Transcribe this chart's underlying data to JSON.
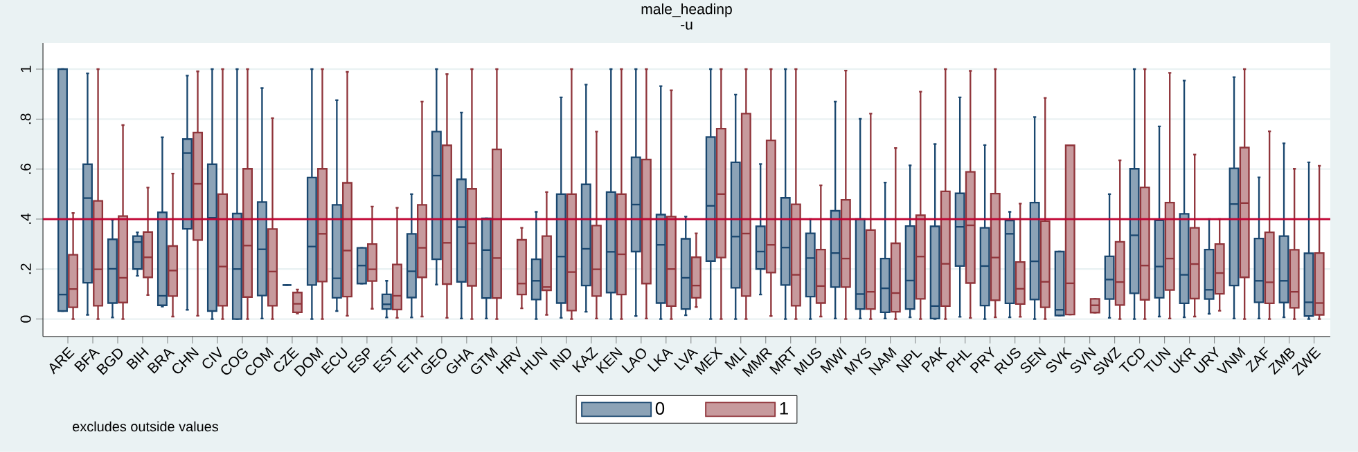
{
  "chart_data": {
    "type": "box",
    "title": "male_headinp",
    "subtitle": "-u",
    "categories": [
      "ARE",
      "BFA",
      "BGD",
      "BIH",
      "BRA",
      "CHN",
      "CIV",
      "COG",
      "COM",
      "CZE",
      "DOM",
      "ECU",
      "ESP",
      "EST",
      "ETH",
      "GEO",
      "GHA",
      "GTM",
      "HRV",
      "HUN",
      "IND",
      "KAZ",
      "KEN",
      "LAO",
      "LKA",
      "LVA",
      "MEX",
      "MLI",
      "MMR",
      "MRT",
      "MUS",
      "MWI",
      "MYS",
      "NAM",
      "NPL",
      "PAK",
      "PHL",
      "PRY",
      "RUS",
      "SEN",
      "SVK",
      "SVN",
      "SWZ",
      "TCD",
      "TUN",
      "UKR",
      "URY",
      "VNM",
      "ZAF",
      "ZMB",
      "ZWE"
    ],
    "series": [
      {
        "name": "0",
        "color": "#1a476f",
        "boxes": [
          {
            "low": 0.032,
            "q1": 0.032,
            "median": 0.098,
            "q3": 1.0,
            "high": 1.0
          },
          {
            "low": 0.017,
            "q1": 0.145,
            "median": 0.484,
            "q3": 0.619,
            "high": 0.983
          },
          {
            "low": 0.006,
            "q1": 0.064,
            "median": 0.201,
            "q3": 0.319,
            "high": 0.397
          },
          {
            "low": 0.173,
            "q1": 0.2,
            "median": 0.308,
            "q3": 0.332,
            "high": 0.347
          },
          {
            "low": 0.05,
            "q1": 0.055,
            "median": 0.093,
            "q3": 0.427,
            "high": 0.727
          },
          {
            "low": 0.037,
            "q1": 0.361,
            "median": 0.664,
            "q3": 0.72,
            "high": 0.974
          },
          {
            "low": 0.0,
            "q1": 0.032,
            "median": 0.405,
            "q3": 0.619,
            "high": 1.0
          },
          {
            "low": 0.0,
            "q1": 0.0,
            "median": 0.2,
            "q3": 0.422,
            "high": 1.0
          },
          {
            "low": 0.002,
            "q1": 0.094,
            "median": 0.279,
            "q3": 0.468,
            "high": 0.924
          },
          {
            "low": 0.136,
            "q1": 0.136,
            "median": 0.136,
            "q3": 0.136,
            "high": 0.136
          },
          {
            "low": 0.0,
            "q1": 0.136,
            "median": 0.29,
            "q3": 0.566,
            "high": 1.0
          },
          {
            "low": 0.032,
            "q1": 0.085,
            "median": 0.163,
            "q3": 0.457,
            "high": 0.876
          },
          {
            "low": 0.142,
            "q1": 0.142,
            "median": 0.214,
            "q3": 0.285,
            "high": 0.285
          },
          {
            "low": 0.006,
            "q1": 0.04,
            "median": 0.059,
            "q3": 0.099,
            "high": 0.153
          },
          {
            "low": 0.006,
            "q1": 0.086,
            "median": 0.191,
            "q3": 0.341,
            "high": 0.5
          },
          {
            "low": 0.138,
            "q1": 0.239,
            "median": 0.574,
            "q3": 0.75,
            "high": 1.0
          },
          {
            "low": 0.002,
            "q1": 0.149,
            "median": 0.368,
            "q3": 0.559,
            "high": 0.826
          },
          {
            "low": 0.002,
            "q1": 0.084,
            "median": 0.276,
            "q3": 0.403,
            "high": 0.403
          },
          null,
          {
            "low": 0.0,
            "q1": 0.078,
            "median": 0.153,
            "q3": 0.239,
            "high": 0.429
          },
          {
            "low": 0.005,
            "q1": 0.064,
            "median": 0.25,
            "q3": 0.5,
            "high": 0.887
          },
          {
            "low": 0.029,
            "q1": 0.134,
            "median": 0.281,
            "q3": 0.539,
            "high": 0.938
          },
          {
            "low": 0.0,
            "q1": 0.106,
            "median": 0.269,
            "q3": 0.508,
            "high": 1.0
          },
          {
            "low": 0.012,
            "q1": 0.27,
            "median": 0.458,
            "q3": 0.647,
            "high": 1.0
          },
          {
            "low": 0.0,
            "q1": 0.064,
            "median": 0.297,
            "q3": 0.418,
            "high": 0.932
          },
          {
            "low": 0.015,
            "q1": 0.04,
            "median": 0.165,
            "q3": 0.321,
            "high": 0.41
          },
          {
            "low": 0.0,
            "q1": 0.232,
            "median": 0.453,
            "q3": 0.728,
            "high": 1.0
          },
          {
            "low": 0.0,
            "q1": 0.125,
            "median": 0.33,
            "q3": 0.627,
            "high": 0.898
          },
          {
            "low": 0.098,
            "q1": 0.2,
            "median": 0.27,
            "q3": 0.371,
            "high": 0.62
          },
          {
            "low": 0.0,
            "q1": 0.136,
            "median": 0.286,
            "q3": 0.485,
            "high": 1.0
          },
          {
            "low": 0.0,
            "q1": 0.09,
            "median": 0.244,
            "q3": 0.343,
            "high": 0.4
          },
          {
            "low": 0.002,
            "q1": 0.128,
            "median": 0.264,
            "q3": 0.433,
            "high": 0.87
          },
          {
            "low": 0.002,
            "q1": 0.04,
            "median": 0.1,
            "q3": 0.4,
            "high": 0.801
          },
          {
            "low": 0.002,
            "q1": 0.027,
            "median": 0.123,
            "q3": 0.242,
            "high": 0.546
          },
          {
            "low": 0.007,
            "q1": 0.04,
            "median": 0.154,
            "q3": 0.372,
            "high": 0.615
          },
          {
            "low": 0.0,
            "q1": 0.002,
            "median": 0.052,
            "q3": 0.371,
            "high": 0.7
          },
          {
            "low": 0.009,
            "q1": 0.212,
            "median": 0.369,
            "q3": 0.503,
            "high": 0.887
          },
          {
            "low": 0.0,
            "q1": 0.054,
            "median": 0.212,
            "q3": 0.365,
            "high": 0.696
          },
          {
            "low": 0.007,
            "q1": 0.063,
            "median": 0.341,
            "q3": 0.394,
            "high": 0.429
          },
          {
            "low": 0.0,
            "q1": 0.078,
            "median": 0.231,
            "q3": 0.466,
            "high": 0.808
          },
          {
            "low": 0.014,
            "q1": 0.014,
            "median": 0.037,
            "q3": 0.27,
            "high": 0.27
          },
          null,
          {
            "low": 0.005,
            "q1": 0.08,
            "median": 0.158,
            "q3": 0.251,
            "high": 0.5
          },
          {
            "low": 0.0,
            "q1": 0.103,
            "median": 0.335,
            "q3": 0.601,
            "high": 1.0
          },
          {
            "low": 0.01,
            "q1": 0.085,
            "median": 0.21,
            "q3": 0.395,
            "high": 0.771
          },
          {
            "low": 0.007,
            "q1": 0.063,
            "median": 0.177,
            "q3": 0.421,
            "high": 0.954
          },
          {
            "low": 0.021,
            "q1": 0.08,
            "median": 0.117,
            "q3": 0.278,
            "high": 0.4
          },
          {
            "low": 0.002,
            "q1": 0.134,
            "median": 0.46,
            "q3": 0.603,
            "high": 0.968
          },
          {
            "low": 0.002,
            "q1": 0.067,
            "median": 0.153,
            "q3": 0.322,
            "high": 0.567
          },
          {
            "low": 0.007,
            "q1": 0.066,
            "median": 0.153,
            "q3": 0.332,
            "high": 0.703
          },
          {
            "low": 0.0,
            "q1": 0.012,
            "median": 0.067,
            "q3": 0.263,
            "high": 0.627
          }
        ]
      },
      {
        "name": "1",
        "color": "#90353b",
        "boxes": [
          {
            "low": 0.0,
            "q1": 0.047,
            "median": 0.12,
            "q3": 0.257,
            "high": 0.424
          },
          {
            "low": 0.0,
            "q1": 0.053,
            "median": 0.199,
            "q3": 0.473,
            "high": 1.0
          },
          {
            "low": 0.0,
            "q1": 0.066,
            "median": 0.165,
            "q3": 0.412,
            "high": 0.776
          },
          {
            "low": 0.096,
            "q1": 0.167,
            "median": 0.247,
            "q3": 0.348,
            "high": 0.526
          },
          {
            "low": 0.01,
            "q1": 0.092,
            "median": 0.194,
            "q3": 0.292,
            "high": 0.582
          },
          {
            "low": 0.013,
            "q1": 0.316,
            "median": 0.541,
            "q3": 0.746,
            "high": 0.991
          },
          {
            "low": 0.0,
            "q1": 0.053,
            "median": 0.21,
            "q3": 0.5,
            "high": 1.0
          },
          {
            "low": 0.0,
            "q1": 0.088,
            "median": 0.294,
            "q3": 0.601,
            "high": 1.0
          },
          {
            "low": 0.0,
            "q1": 0.053,
            "median": 0.19,
            "q3": 0.36,
            "high": 0.804
          },
          {
            "low": 0.022,
            "q1": 0.027,
            "median": 0.061,
            "q3": 0.106,
            "high": 0.118
          },
          {
            "low": 0.0,
            "q1": 0.15,
            "median": 0.341,
            "q3": 0.601,
            "high": 1.0
          },
          {
            "low": 0.013,
            "q1": 0.09,
            "median": 0.274,
            "q3": 0.545,
            "high": 0.989
          },
          {
            "low": 0.041,
            "q1": 0.152,
            "median": 0.199,
            "q3": 0.3,
            "high": 0.45
          },
          {
            "low": 0.005,
            "q1": 0.038,
            "median": 0.093,
            "q3": 0.218,
            "high": 0.445
          },
          {
            "low": 0.01,
            "q1": 0.167,
            "median": 0.285,
            "q3": 0.457,
            "high": 0.87
          },
          {
            "low": 0.005,
            "q1": 0.14,
            "median": 0.305,
            "q3": 0.695,
            "high": 0.98
          },
          {
            "low": 0.0,
            "q1": 0.133,
            "median": 0.303,
            "q3": 0.521,
            "high": 1.0
          },
          {
            "low": 0.0,
            "q1": 0.084,
            "median": 0.244,
            "q3": 0.679,
            "high": 1.0
          },
          {
            "low": 0.043,
            "q1": 0.098,
            "median": 0.142,
            "q3": 0.317,
            "high": 0.365
          },
          {
            "low": 0.017,
            "q1": 0.115,
            "median": 0.128,
            "q3": 0.332,
            "high": 0.508
          },
          {
            "low": 0.0,
            "q1": 0.034,
            "median": 0.188,
            "q3": 0.5,
            "high": 1.0
          },
          {
            "low": 0.002,
            "q1": 0.092,
            "median": 0.199,
            "q3": 0.374,
            "high": 0.75
          },
          {
            "low": 0.0,
            "q1": 0.098,
            "median": 0.259,
            "q3": 0.5,
            "high": 1.0
          },
          {
            "low": 0.002,
            "q1": 0.142,
            "median": 0.4,
            "q3": 0.638,
            "high": 1.0
          },
          {
            "low": 0.0,
            "q1": 0.052,
            "median": 0.2,
            "q3": 0.41,
            "high": 0.915
          },
          {
            "low": 0.048,
            "q1": 0.085,
            "median": 0.134,
            "q3": 0.247,
            "high": 0.343
          },
          {
            "low": 0.0,
            "q1": 0.246,
            "median": 0.5,
            "q3": 0.762,
            "high": 1.0
          },
          {
            "low": 0.0,
            "q1": 0.092,
            "median": 0.342,
            "q3": 0.822,
            "high": 1.0
          },
          {
            "low": 0.012,
            "q1": 0.186,
            "median": 0.297,
            "q3": 0.715,
            "high": 1.0
          },
          {
            "low": 0.0,
            "q1": 0.053,
            "median": 0.177,
            "q3": 0.459,
            "high": 1.0
          },
          {
            "low": 0.01,
            "q1": 0.064,
            "median": 0.132,
            "q3": 0.278,
            "high": 0.535
          },
          {
            "low": 0.0,
            "q1": 0.128,
            "median": 0.242,
            "q3": 0.477,
            "high": 0.994
          },
          {
            "low": 0.0,
            "q1": 0.04,
            "median": 0.109,
            "q3": 0.356,
            "high": 0.822
          },
          {
            "low": 0.0,
            "q1": 0.029,
            "median": 0.104,
            "q3": 0.303,
            "high": 0.684
          },
          {
            "low": 0.0,
            "q1": 0.081,
            "median": 0.25,
            "q3": 0.415,
            "high": 0.91
          },
          {
            "low": 0.0,
            "q1": 0.052,
            "median": 0.221,
            "q3": 0.511,
            "high": 1.0
          },
          {
            "low": 0.004,
            "q1": 0.144,
            "median": 0.375,
            "q3": 0.589,
            "high": 0.993
          },
          {
            "low": 0.007,
            "q1": 0.075,
            "median": 0.246,
            "q3": 0.502,
            "high": 1.0
          },
          {
            "low": 0.009,
            "q1": 0.06,
            "median": 0.121,
            "q3": 0.228,
            "high": 0.462
          },
          {
            "low": 0.0,
            "q1": 0.047,
            "median": 0.149,
            "q3": 0.392,
            "high": 0.885
          },
          {
            "low": 0.018,
            "q1": 0.018,
            "median": 0.143,
            "q3": 0.695,
            "high": 0.695
          },
          {
            "low": 0.026,
            "q1": 0.026,
            "median": 0.055,
            "q3": 0.081,
            "high": 0.081
          },
          {
            "low": 0.0,
            "q1": 0.056,
            "median": 0.148,
            "q3": 0.309,
            "high": 0.635
          },
          {
            "low": 0.0,
            "q1": 0.077,
            "median": 0.214,
            "q3": 0.527,
            "high": 1.0
          },
          {
            "low": 0.002,
            "q1": 0.116,
            "median": 0.242,
            "q3": 0.466,
            "high": 0.985
          },
          {
            "low": 0.01,
            "q1": 0.082,
            "median": 0.22,
            "q3": 0.365,
            "high": 0.658
          },
          {
            "low": 0.033,
            "q1": 0.101,
            "median": 0.184,
            "q3": 0.3,
            "high": 0.4
          },
          {
            "low": 0.0,
            "q1": 0.167,
            "median": 0.464,
            "q3": 0.686,
            "high": 1.0
          },
          {
            "low": 0.0,
            "q1": 0.063,
            "median": 0.147,
            "q3": 0.347,
            "high": 0.751
          },
          {
            "low": 0.0,
            "q1": 0.045,
            "median": 0.109,
            "q3": 0.277,
            "high": 0.601
          },
          {
            "low": 0.0,
            "q1": 0.017,
            "median": 0.064,
            "q3": 0.264,
            "high": 0.613
          }
        ]
      }
    ],
    "ylim": [
      -0.07,
      1.105
    ],
    "yticks": [
      0,
      {
        "value": 0.2,
        "label": ".2"
      },
      {
        "value": 0.4,
        "label": ".4"
      },
      {
        "value": 0.6,
        "label": ".6"
      },
      {
        "value": 0.8,
        "label": ".8"
      },
      1
    ],
    "ref_lines": [
      {
        "axis": "y",
        "value": 0.4,
        "color": "#c10534"
      }
    ],
    "grid": "y",
    "legend": "bottom",
    "annotations": [
      "excludes outside values"
    ]
  }
}
